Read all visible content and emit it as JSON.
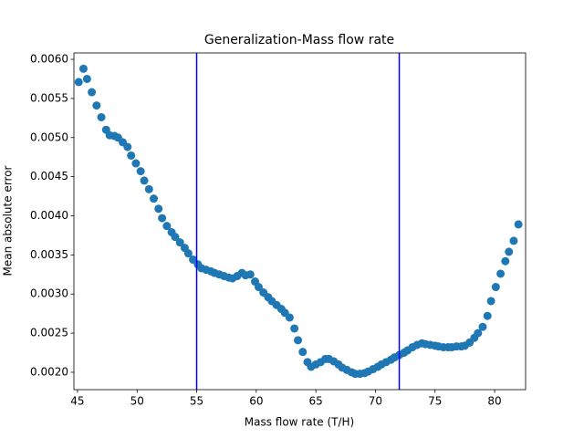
{
  "chart_data": {
    "type": "scatter",
    "title": "Generalization-Mass flow rate",
    "xlabel": "Mass flow rate (T/H)",
    "ylabel": "Mean absolute error",
    "xlim": [
      44.7,
      82.6
    ],
    "ylim": [
      0.001778,
      0.006082
    ],
    "xticks": [
      45,
      50,
      55,
      60,
      65,
      70,
      75,
      80
    ],
    "yticks": [
      {
        "value": 0.002,
        "label": "0.0020"
      },
      0.0025,
      {
        "value": 0.003,
        "label": "0.0030"
      },
      0.0035,
      {
        "value": 0.004,
        "label": "0.0040"
      },
      0.0045,
      {
        "value": 0.005,
        "label": "0.0050"
      },
      0.0055,
      {
        "value": 0.006,
        "label": "0.0060"
      }
    ],
    "grid": false,
    "vlines": [
      55,
      72
    ],
    "vline_color": "#0000ff",
    "series": [
      {
        "color": "#1f77b4",
        "x": [
          45.1,
          45.5,
          45.8,
          46.2,
          46.6,
          47.0,
          47.4,
          47.7,
          48.1,
          48.4,
          48.8,
          49.2,
          49.5,
          49.9,
          50.3,
          50.6,
          51.0,
          51.4,
          51.8,
          52.1,
          52.5,
          52.9,
          53.2,
          53.6,
          54.0,
          54.3,
          54.7,
          55.1,
          55.4,
          55.8,
          56.2,
          56.5,
          56.9,
          57.3,
          57.7,
          58.0,
          58.4,
          58.8,
          59.1,
          59.5,
          59.9,
          60.2,
          60.6,
          61.0,
          61.3,
          61.7,
          62.1,
          62.4,
          62.8,
          63.2,
          63.5,
          63.9,
          64.3,
          64.6,
          65.0,
          65.4,
          65.8,
          66.1,
          66.5,
          66.9,
          67.2,
          67.6,
          68.0,
          68.3,
          68.7,
          69.1,
          69.4,
          69.8,
          70.2,
          70.5,
          70.9,
          71.3,
          71.6,
          72.0,
          72.4,
          72.7,
          73.1,
          73.5,
          73.9,
          74.2,
          74.6,
          75.0,
          75.3,
          75.7,
          76.1,
          76.4,
          76.8,
          77.2,
          77.5,
          77.9,
          78.3,
          78.6,
          79.0,
          79.4,
          79.7,
          80.1,
          80.5,
          80.9,
          81.2,
          81.6,
          82.0
        ],
        "values": [
          0.00571,
          0.00588,
          0.00575,
          0.00558,
          0.00541,
          0.00526,
          0.0051,
          0.00503,
          0.00502,
          0.005,
          0.00494,
          0.00488,
          0.00477,
          0.00467,
          0.00457,
          0.00445,
          0.00434,
          0.00422,
          0.00409,
          0.00397,
          0.00387,
          0.00379,
          0.00373,
          0.00366,
          0.00359,
          0.00352,
          0.00344,
          0.00338,
          0.00333,
          0.00331,
          0.00329,
          0.00327,
          0.00325,
          0.00323,
          0.00321,
          0.0032,
          0.00323,
          0.00327,
          0.00324,
          0.00325,
          0.00316,
          0.00309,
          0.00302,
          0.00296,
          0.00291,
          0.00286,
          0.00281,
          0.00276,
          0.0027,
          0.00256,
          0.00241,
          0.00226,
          0.00213,
          0.00207,
          0.0021,
          0.00213,
          0.00217,
          0.00217,
          0.00214,
          0.0021,
          0.00206,
          0.00203,
          0.002,
          0.00198,
          0.00198,
          0.00199,
          0.00201,
          0.00204,
          0.00207,
          0.0021,
          0.00213,
          0.00216,
          0.00219,
          0.00222,
          0.00225,
          0.00228,
          0.00232,
          0.00235,
          0.00237,
          0.00236,
          0.00235,
          0.00234,
          0.00233,
          0.00232,
          0.00232,
          0.00232,
          0.00233,
          0.00233,
          0.00234,
          0.00238,
          0.00244,
          0.0025,
          0.00258,
          0.00272,
          0.00291,
          0.00309,
          0.00326,
          0.00342,
          0.00354,
          0.00368,
          0.00389
        ]
      }
    ]
  }
}
